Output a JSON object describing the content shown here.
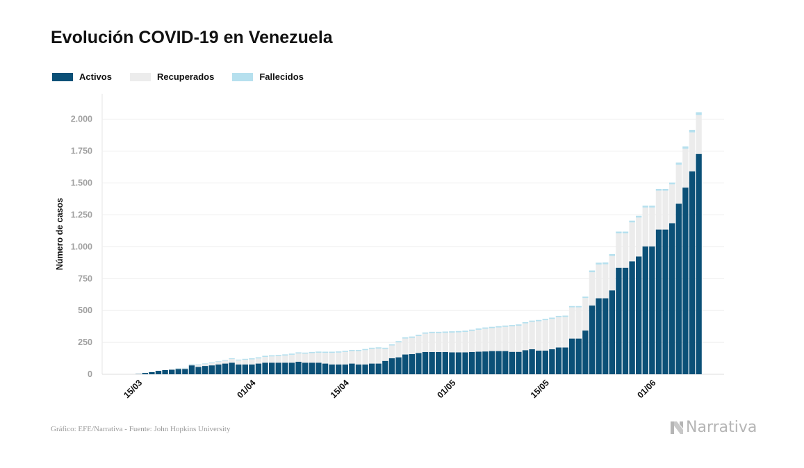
{
  "title": "Evolución COVID-19 en Venezuela",
  "legend": [
    {
      "label": "Activos",
      "color": "#0b5077"
    },
    {
      "label": "Recuperados",
      "color": "#ececec"
    },
    {
      "label": "Fallecidos",
      "color": "#b6e0ee"
    }
  ],
  "footer": {
    "source": "Gráfico: EFE/Narrativa - Fuente: John Hopkins University",
    "brand": "Narrativa"
  },
  "chart_data": {
    "type": "bar",
    "stacked": true,
    "ylabel": "Número de casos",
    "ylim": [
      0,
      2200
    ],
    "yticks": [
      0,
      250,
      500,
      750,
      1000,
      1250,
      1500,
      1750,
      2000
    ],
    "ytick_labels": [
      "0",
      "250",
      "500",
      "750",
      "1.000",
      "1.250",
      "1.500",
      "1.750",
      "2.000"
    ],
    "x_labels": [
      {
        "index": 5,
        "label": "15/03"
      },
      {
        "index": 22,
        "label": "01/04"
      },
      {
        "index": 36,
        "label": "15/04"
      },
      {
        "index": 52,
        "label": "01/05"
      },
      {
        "index": 66,
        "label": "15/05"
      },
      {
        "index": 82,
        "label": "01/06"
      }
    ],
    "grid": true,
    "legend_position": "top-left",
    "series": [
      {
        "name": "Activos",
        "color": "#0b5077",
        "values": [
          0,
          0,
          0,
          0,
          0,
          2,
          10,
          17,
          27,
          33,
          36,
          42,
          42,
          70,
          58,
          65,
          70,
          77,
          84,
          91,
          77,
          77,
          77,
          84,
          91,
          91,
          91,
          91,
          91,
          98,
          91,
          91,
          91,
          84,
          77,
          77,
          77,
          84,
          77,
          77,
          84,
          84,
          105,
          126,
          133,
          155,
          158,
          167,
          175,
          175,
          175,
          175,
          172,
          172,
          172,
          175,
          177,
          179,
          182,
          182,
          182,
          176,
          176,
          189,
          196,
          186,
          186,
          196,
          210,
          210,
          280,
          280,
          343,
          539,
          596,
          596,
          658,
          835,
          835,
          886,
          924,
          1003,
          1003,
          1135,
          1135,
          1185,
          1338,
          1464,
          1592,
          1728
        ]
      },
      {
        "name": "Recuperados",
        "color": "#ececec",
        "values": [
          0,
          0,
          0,
          0,
          0,
          0,
          0,
          0,
          0,
          0,
          5,
          5,
          5,
          7,
          15,
          15,
          17,
          20,
          22,
          28,
          31,
          37,
          40,
          40,
          45,
          49,
          52,
          56,
          62,
          65,
          70,
          75,
          78,
          84,
          91,
          93,
          98,
          98,
          105,
          112,
          115,
          118,
          94,
          100,
          117,
          125,
          128,
          133,
          143,
          148,
          148,
          150,
          155,
          157,
          160,
          165,
          172,
          178,
          180,
          185,
          190,
          200,
          205,
          210,
          215,
          230,
          238,
          238,
          238,
          240,
          245,
          245,
          255,
          261,
          265,
          267,
          270,
          270,
          270,
          305,
          305,
          305,
          305,
          305,
          305,
          305,
          305,
          305,
          305,
          305
        ]
      },
      {
        "name": "Fallecidos",
        "color": "#b6e0ee",
        "values": [
          0,
          0,
          0,
          0,
          0,
          0,
          0,
          0,
          0,
          0,
          0,
          2,
          3,
          5,
          5,
          5,
          5,
          5,
          5,
          6,
          7,
          7,
          8,
          9,
          9,
          9,
          9,
          9,
          9,
          9,
          9,
          9,
          9,
          9,
          9,
          9,
          9,
          9,
          9,
          9,
          9,
          9,
          9,
          9,
          10,
          10,
          10,
          10,
          10,
          10,
          10,
          10,
          10,
          10,
          10,
          10,
          10,
          10,
          10,
          10,
          10,
          10,
          10,
          10,
          10,
          10,
          10,
          10,
          10,
          10,
          10,
          10,
          11,
          14,
          14,
          14,
          14,
          14,
          14,
          14,
          14,
          14,
          14,
          14,
          14,
          14,
          17,
          18,
          20,
          22
        ]
      }
    ]
  }
}
